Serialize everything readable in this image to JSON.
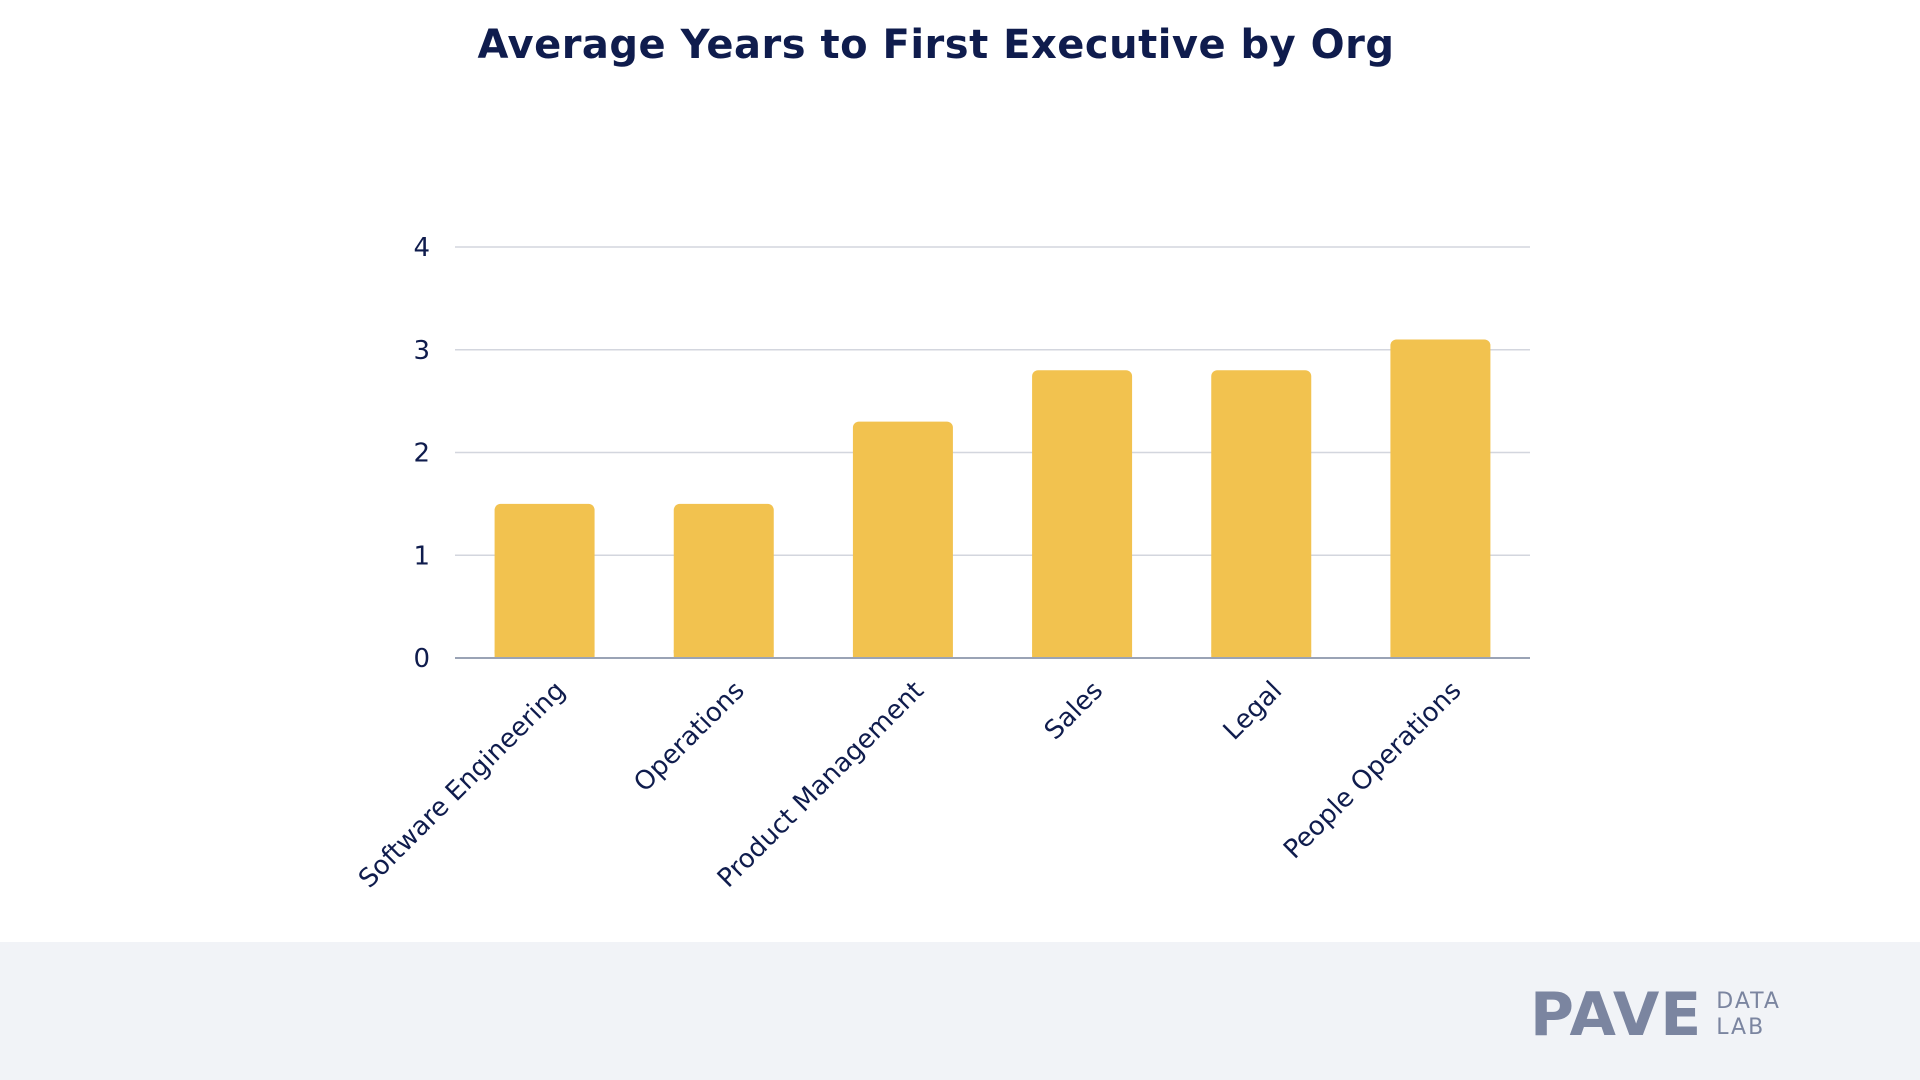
{
  "colors": {
    "title": "#0f1c4d",
    "bar": "#f2c24f",
    "grid": "#d3d6de",
    "axis": "#9aa3b5",
    "label": "#0f1c4d",
    "footer_bg": "#f1f3f7",
    "logo": "#7b85a0"
  },
  "chart_data": {
    "type": "bar",
    "title": "Average Years to First Executive by Org",
    "xlabel": "",
    "ylabel": "",
    "categories": [
      "Software Engineering",
      "Operations",
      "Product Management",
      "Sales",
      "Legal",
      "People Operations"
    ],
    "values": [
      1.5,
      1.5,
      2.3,
      2.8,
      2.8,
      3.1
    ],
    "ylim": [
      0,
      4
    ],
    "yticks": [
      "0",
      "1",
      "2",
      "3",
      "4"
    ],
    "grid": true,
    "legend": "none"
  },
  "branding": {
    "logo_text": "PAVE",
    "logo_sub_line1": "DATA",
    "logo_sub_line2": "LAB"
  }
}
